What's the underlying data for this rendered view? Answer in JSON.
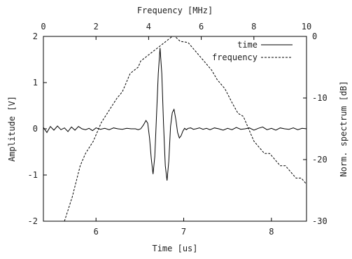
{
  "chart_data": {
    "type": "line",
    "grid": false,
    "legend_position": "top-right",
    "axes": {
      "bottom": {
        "label": "Time [us]",
        "range": [
          5.4,
          8.4
        ],
        "ticks": [
          6,
          7,
          8
        ],
        "tick_labels": [
          "6",
          "7",
          "8"
        ]
      },
      "left": {
        "label": "Amplitude [V]",
        "range": [
          -2,
          2
        ],
        "ticks": [
          -2,
          -1,
          0,
          1,
          2
        ],
        "tick_labels": [
          "-2",
          "-1",
          "0",
          "1",
          "2"
        ]
      },
      "top": {
        "label": "Frequency [MHz]",
        "range": [
          0,
          10
        ],
        "ticks": [
          0,
          2,
          4,
          6,
          8,
          10
        ],
        "tick_labels": [
          "0",
          "2",
          "4",
          "6",
          "8",
          "10"
        ]
      },
      "right": {
        "label": "Norm. spectrum [dB]",
        "range": [
          -30,
          0
        ],
        "ticks": [
          0,
          -10,
          -20,
          -30
        ],
        "tick_labels": [
          "0",
          "-10",
          "-20",
          "-30"
        ]
      }
    },
    "series": [
      {
        "name": "time",
        "style": "solid",
        "axes": [
          "bottom",
          "left"
        ],
        "x": [
          5.4,
          5.44,
          5.48,
          5.52,
          5.56,
          5.6,
          5.64,
          5.68,
          5.72,
          5.76,
          5.8,
          5.84,
          5.88,
          5.92,
          5.96,
          6.0,
          6.05,
          6.1,
          6.15,
          6.2,
          6.25,
          6.3,
          6.35,
          6.4,
          6.45,
          6.48,
          6.51,
          6.54,
          6.57,
          6.59,
          6.61,
          6.63,
          6.65,
          6.67,
          6.69,
          6.71,
          6.73,
          6.75,
          6.77,
          6.79,
          6.81,
          6.83,
          6.85,
          6.87,
          6.89,
          6.91,
          6.93,
          6.95,
          6.97,
          6.99,
          7.01,
          7.03,
          7.05,
          7.08,
          7.11,
          7.14,
          7.18,
          7.22,
          7.26,
          7.3,
          7.35,
          7.4,
          7.45,
          7.5,
          7.55,
          7.6,
          7.65,
          7.7,
          7.75,
          7.8,
          7.85,
          7.9,
          7.95,
          8.0,
          8.05,
          8.1,
          8.15,
          8.2,
          8.25,
          8.3,
          8.35,
          8.4
        ],
        "y": [
          0.03,
          -0.08,
          0.05,
          -0.03,
          0.06,
          -0.02,
          0.02,
          -0.06,
          0.04,
          -0.03,
          0.05,
          0.0,
          -0.02,
          0.01,
          -0.04,
          0.02,
          -0.01,
          0.01,
          -0.02,
          0.02,
          0.0,
          -0.01,
          0.01,
          0.0,
          0.0,
          -0.02,
          0.0,
          0.08,
          0.18,
          0.12,
          -0.2,
          -0.65,
          -0.98,
          -0.6,
          0.3,
          1.2,
          1.75,
          1.2,
          0.1,
          -0.8,
          -1.12,
          -0.7,
          0.05,
          0.35,
          0.42,
          0.2,
          -0.08,
          -0.2,
          -0.15,
          -0.05,
          0.01,
          -0.02,
          0.01,
          0.02,
          -0.01,
          0.0,
          0.02,
          -0.01,
          0.01,
          -0.02,
          0.02,
          0.0,
          -0.03,
          0.01,
          -0.02,
          0.03,
          -0.01,
          0.0,
          0.02,
          -0.03,
          0.01,
          0.04,
          -0.02,
          0.01,
          -0.03,
          0.02,
          0.0,
          -0.01,
          0.02,
          -0.02,
          0.01,
          0.0
        ]
      },
      {
        "name": "frequency",
        "style": "dashed",
        "axes": [
          "top",
          "right"
        ],
        "x": [
          0.8,
          1.1,
          1.4,
          1.6,
          1.9,
          2.2,
          2.5,
          2.8,
          3.0,
          3.3,
          3.6,
          3.7,
          4.0,
          4.3,
          4.6,
          4.9,
          5.0,
          5.2,
          5.5,
          5.8,
          6.1,
          6.4,
          6.6,
          6.9,
          7.2,
          7.4,
          7.6,
          7.8,
          8.0,
          8.2,
          8.4,
          8.6,
          8.8,
          9.0,
          9.2,
          9.4,
          9.6,
          9.8,
          10.0
        ],
        "y": [
          -30,
          -26,
          -21,
          -19,
          -17,
          -14,
          -12,
          -10,
          -9,
          -6,
          -5,
          -4,
          -3,
          -2,
          -1,
          0,
          0,
          -0.8,
          -1,
          -2.5,
          -4,
          -5.5,
          -7,
          -8.5,
          -11,
          -12.5,
          -13,
          -15,
          -17,
          -18,
          -19,
          -19,
          -20,
          -21,
          -21,
          -22,
          -23,
          -23,
          -24
        ]
      }
    ]
  }
}
